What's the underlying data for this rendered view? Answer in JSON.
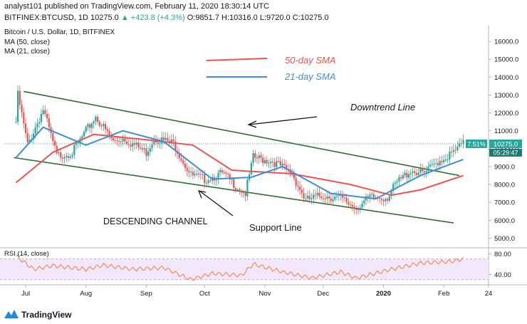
{
  "header": {
    "publish_line": "analyst101 published on TradingView.com, February 11, 2020 18:30:14 UTC",
    "ticker": "BITFINEX:BTCUSD, 1D",
    "last_price": "10275.0",
    "change": "▲ +423.8 (+4.3%)",
    "open": "O:9851.7",
    "high": "H:10316.0",
    "low": "L:9720.0",
    "close": "C:10275.0"
  },
  "chart_data": {
    "type": "candlestick",
    "title": "Bitcoin / U.S. Dollar, 1D, BITFINEX",
    "indicators": [
      "MA (50, close)",
      "MA (21, close)"
    ],
    "x_ticks": [
      "Jul",
      "Aug",
      "Sep",
      "Oct",
      "Nov",
      "Dec",
      "2020",
      "Feb",
      "24"
    ],
    "y_ticks": [
      "16000.0",
      "15000.0",
      "14000.0",
      "13000.0",
      "12000.0",
      "11000.0",
      "10000.0",
      "9000.0",
      "8000.0",
      "7000.0",
      "6000.0",
      "5000.0"
    ],
    "ylim": [
      4500,
      16800
    ],
    "price_label": "10275.0",
    "pct_label": "7.51%",
    "countdown_label": "05:29:47",
    "legend": [
      {
        "name": "50-day SMA",
        "color": "#ef5350"
      },
      {
        "name": "21-day SMA",
        "color": "#3d8ed9"
      }
    ],
    "annotations": {
      "downtrend": "Downtrend Line",
      "channel": "DESCENDING CHANNEL",
      "support": "Support Line"
    },
    "ohlc_points": [
      {
        "date": "2019-06-26",
        "close": 11500
      },
      {
        "date": "2019-06-27",
        "close": 13000
      },
      {
        "date": "2019-07-02",
        "close": 10200
      },
      {
        "date": "2019-07-10",
        "close": 12200
      },
      {
        "date": "2019-07-17",
        "close": 9600
      },
      {
        "date": "2019-07-25",
        "close": 9800
      },
      {
        "date": "2019-08-06",
        "close": 11800
      },
      {
        "date": "2019-08-15",
        "close": 10400
      },
      {
        "date": "2019-08-20",
        "close": 10600
      },
      {
        "date": "2019-09-01",
        "close": 9800
      },
      {
        "date": "2019-09-05",
        "close": 10600
      },
      {
        "date": "2019-09-15",
        "close": 10300
      },
      {
        "date": "2019-09-24",
        "close": 8500
      },
      {
        "date": "2019-10-01",
        "close": 8300
      },
      {
        "date": "2019-10-10",
        "close": 8600
      },
      {
        "date": "2019-10-22",
        "close": 7500
      },
      {
        "date": "2019-10-26",
        "close": 9500
      },
      {
        "date": "2019-11-05",
        "close": 9300
      },
      {
        "date": "2019-11-15",
        "close": 8600
      },
      {
        "date": "2019-11-22",
        "close": 7100
      },
      {
        "date": "2019-12-01",
        "close": 7400
      },
      {
        "date": "2019-12-10",
        "close": 7200
      },
      {
        "date": "2019-12-18",
        "close": 6700
      },
      {
        "date": "2019-12-25",
        "close": 7250
      },
      {
        "date": "2020-01-03",
        "close": 7300
      },
      {
        "date": "2020-01-08",
        "close": 8100
      },
      {
        "date": "2020-01-15",
        "close": 8800
      },
      {
        "date": "2020-01-22",
        "close": 8600
      },
      {
        "date": "2020-01-29",
        "close": 9300
      },
      {
        "date": "2020-02-05",
        "close": 9700
      },
      {
        "date": "2020-02-11",
        "close": 10275
      }
    ],
    "sma50": [
      {
        "date": "2019-06-26",
        "value": 8100
      },
      {
        "date": "2019-07-15",
        "value": 9800
      },
      {
        "date": "2019-08-05",
        "value": 10800
      },
      {
        "date": "2019-09-01",
        "value": 10500
      },
      {
        "date": "2019-09-25",
        "value": 10200
      },
      {
        "date": "2019-10-15",
        "value": 8800
      },
      {
        "date": "2019-11-15",
        "value": 8600
      },
      {
        "date": "2019-12-15",
        "value": 8000
      },
      {
        "date": "2020-01-05",
        "value": 7400
      },
      {
        "date": "2020-01-20",
        "value": 7700
      },
      {
        "date": "2020-02-11",
        "value": 8500
      }
    ],
    "sma21": [
      {
        "date": "2019-06-26",
        "value": 9500
      },
      {
        "date": "2019-07-10",
        "value": 11200
      },
      {
        "date": "2019-08-01",
        "value": 10200
      },
      {
        "date": "2019-08-20",
        "value": 11000
      },
      {
        "date": "2019-09-10",
        "value": 10400
      },
      {
        "date": "2019-10-05",
        "value": 8300
      },
      {
        "date": "2019-10-25",
        "value": 8400
      },
      {
        "date": "2019-11-10",
        "value": 9000
      },
      {
        "date": "2019-12-05",
        "value": 7500
      },
      {
        "date": "2019-12-28",
        "value": 7200
      },
      {
        "date": "2020-01-20",
        "value": 8500
      },
      {
        "date": "2020-02-11",
        "value": 9400
      }
    ],
    "downtrend_line": [
      {
        "date": "2019-06-30",
        "value": 13200
      },
      {
        "date": "2020-02-09",
        "value": 8500
      }
    ],
    "support_line": [
      {
        "date": "2019-06-25",
        "value": 9500
      },
      {
        "date": "2020-02-06",
        "value": 5850
      }
    ],
    "rsi": {
      "label": "RSI (14, close)",
      "y_ticks": [
        "80.00",
        "40.00"
      ],
      "ylim": [
        20,
        90
      ],
      "band": [
        30,
        70
      ],
      "values": [
        {
          "date": "2019-06-26",
          "value": 76
        },
        {
          "date": "2019-07-05",
          "value": 50
        },
        {
          "date": "2019-07-15",
          "value": 57
        },
        {
          "date": "2019-08-01",
          "value": 50
        },
        {
          "date": "2019-08-10",
          "value": 58
        },
        {
          "date": "2019-08-25",
          "value": 50
        },
        {
          "date": "2019-09-10",
          "value": 53
        },
        {
          "date": "2019-09-24",
          "value": 30
        },
        {
          "date": "2019-10-05",
          "value": 42
        },
        {
          "date": "2019-10-20",
          "value": 38
        },
        {
          "date": "2019-10-26",
          "value": 60
        },
        {
          "date": "2019-11-10",
          "value": 45
        },
        {
          "date": "2019-11-25",
          "value": 33
        },
        {
          "date": "2019-12-10",
          "value": 45
        },
        {
          "date": "2019-12-18",
          "value": 33
        },
        {
          "date": "2020-01-05",
          "value": 50
        },
        {
          "date": "2020-01-20",
          "value": 62
        },
        {
          "date": "2020-02-05",
          "value": 65
        },
        {
          "date": "2020-02-11",
          "value": 70
        }
      ]
    }
  },
  "footer": {
    "brand": "TradingView"
  }
}
